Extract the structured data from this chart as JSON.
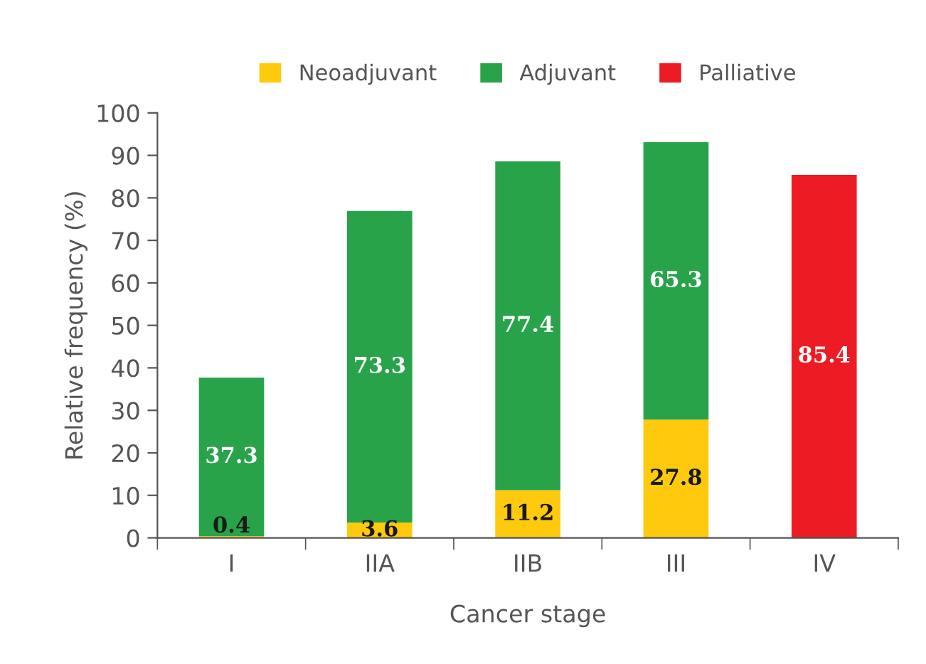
{
  "chart_data": {
    "type": "bar",
    "stacked": true,
    "xlabel": "Cancer stage",
    "ylabel": "Relative frequency (%)",
    "categories": [
      "I",
      "IIA",
      "IIB",
      "III",
      "IV"
    ],
    "series": [
      {
        "name": "Neoadjuvant",
        "color": "#ffc90e",
        "values": [
          0.4,
          3.6,
          11.2,
          27.8,
          null
        ]
      },
      {
        "name": "Adjuvant",
        "color": "#28a34a",
        "values": [
          37.3,
          73.3,
          77.4,
          65.3,
          null
        ]
      },
      {
        "name": "Palliative",
        "color": "#ed1c24",
        "values": [
          null,
          null,
          null,
          null,
          85.4
        ]
      }
    ],
    "ylim": [
      0,
      100
    ],
    "yticks": [
      0,
      10,
      20,
      30,
      40,
      50,
      60,
      70,
      80,
      90,
      100
    ],
    "data_labels": true,
    "legend": "top",
    "grid": false
  }
}
